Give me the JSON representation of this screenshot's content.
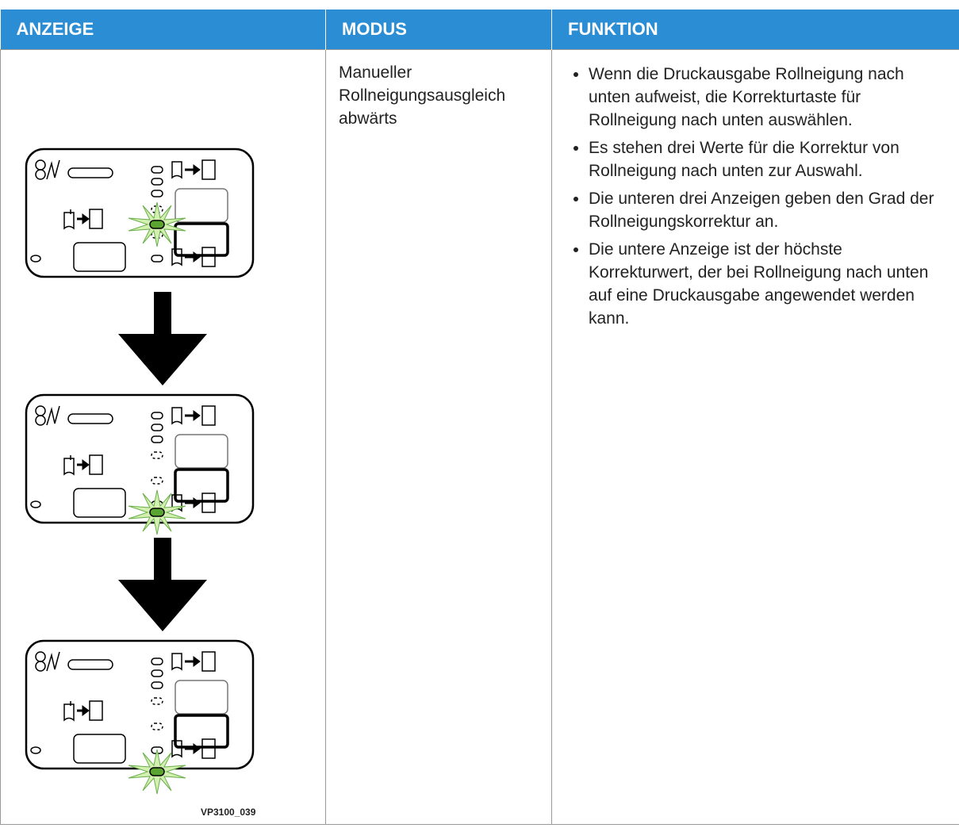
{
  "table": {
    "headers": [
      "ANZEIGE",
      "MODUS",
      "FUNKTION"
    ],
    "rows": [
      {
        "figure_caption": "VP3100_039",
        "mode": "Manueller Rollneigungsausgleich abwärts",
        "functions": [
          "Wenn die Druckausgabe Rollneigung nach unten aufweist, die Korrekturtaste für Rollneigung nach unten auswählen.",
          "Es stehen drei Werte für die Korrektur von Rollneigung nach unten zur Auswahl.",
          "Die unteren drei Anzeigen geben den Grad der Rollneigungskorrektur an.",
          "Die untere Anzeige ist der höchste Korrekturwert, der bei Rollneigung nach unten auf eine Druckausgabe angewendet werden kann."
        ]
      }
    ]
  }
}
